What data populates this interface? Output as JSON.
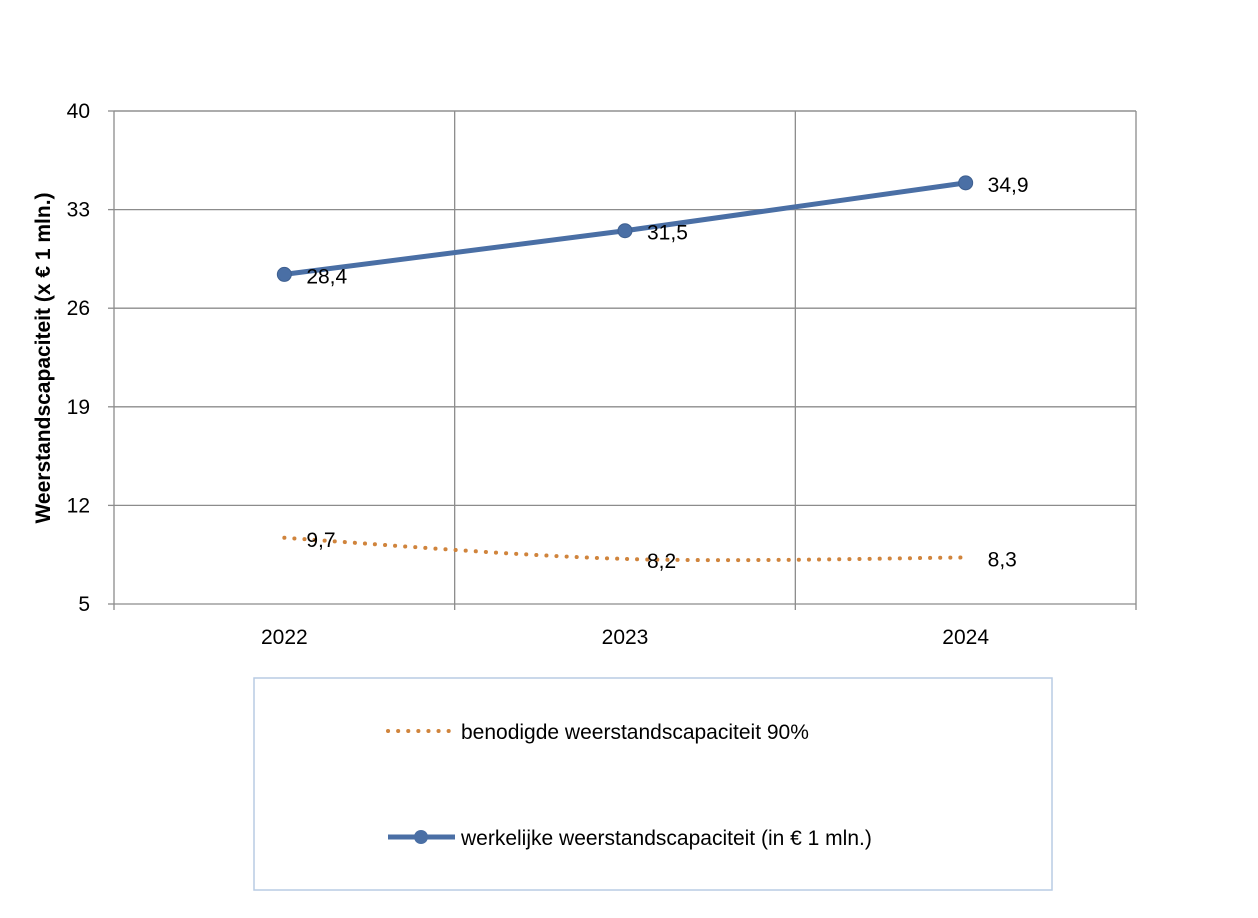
{
  "chart_data": {
    "type": "line",
    "title": "",
    "xlabel": "",
    "ylabel": "Weerstandscapaciteit (x € 1 mln.)",
    "categories": [
      "2022",
      "2023",
      "2024"
    ],
    "ylim": [
      5,
      40
    ],
    "yticks": [
      5,
      12,
      19,
      26,
      33,
      40
    ],
    "grid": true,
    "legend_position": "bottom",
    "series": [
      {
        "name": "werkelijke weerstandscapaciteit (in € 1 mln.)",
        "values": [
          28.4,
          31.5,
          34.9
        ],
        "labels": [
          "28,4",
          "31,5",
          "34,9"
        ],
        "color": "#4a6fa5",
        "style": "solid",
        "marker": "circle"
      },
      {
        "name": "benodigde weerstandscapaciteit 90%",
        "values": [
          9.7,
          8.2,
          8.3
        ],
        "labels": [
          "9,7",
          "8,2",
          "8,3"
        ],
        "color": "#d0843c",
        "style": "dotted",
        "marker": "none"
      }
    ],
    "legend_order": [
      1,
      0
    ]
  }
}
